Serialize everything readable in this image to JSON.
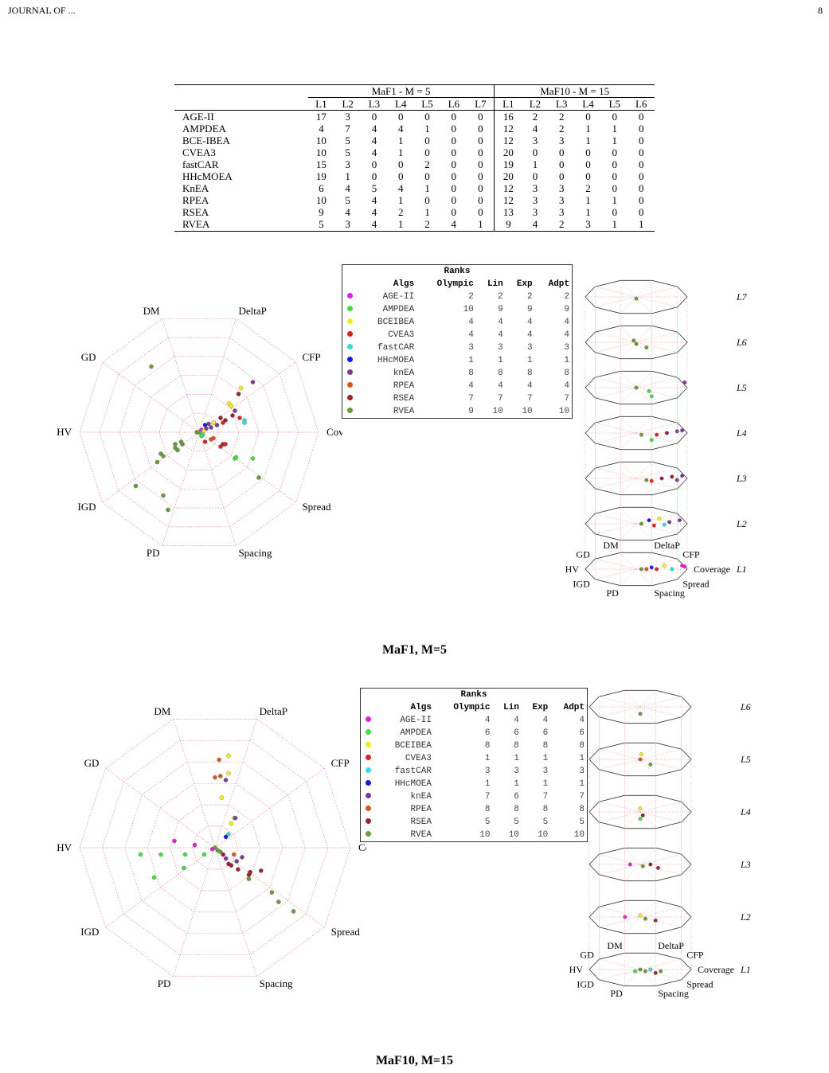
{
  "header": {
    "left": "JOURNAL OF ...",
    "right": "8"
  },
  "levels_table": {
    "group1_title": "MaF1 - M = 5",
    "group2_title": "MaF10 - M = 15",
    "group1_cols": [
      "L1",
      "L2",
      "L3",
      "L4",
      "L5",
      "L6",
      "L7"
    ],
    "group2_cols": [
      "L1",
      "L2",
      "L3",
      "L4",
      "L5",
      "L6"
    ],
    "rows": [
      {
        "name": "AGE-II",
        "g1": [
          "17",
          "3",
          "0",
          "0",
          "0",
          "0",
          "0"
        ],
        "g2": [
          "16",
          "2",
          "2",
          "0",
          "0",
          "0"
        ]
      },
      {
        "name": "AMPDEA",
        "g1": [
          "4",
          "7",
          "4",
          "4",
          "1",
          "0",
          "0"
        ],
        "g2": [
          "12",
          "4",
          "2",
          "1",
          "1",
          "0"
        ]
      },
      {
        "name": "BCE-IBEA",
        "g1": [
          "10",
          "5",
          "4",
          "1",
          "0",
          "0",
          "0"
        ],
        "g2": [
          "12",
          "3",
          "3",
          "1",
          "1",
          "0"
        ]
      },
      {
        "name": "CVEA3",
        "g1": [
          "10",
          "5",
          "4",
          "1",
          "0",
          "0",
          "0"
        ],
        "g2": [
          "20",
          "0",
          "0",
          "0",
          "0",
          "0"
        ]
      },
      {
        "name": "fastCAR",
        "g1": [
          "15",
          "3",
          "0",
          "0",
          "2",
          "0",
          "0"
        ],
        "g2": [
          "19",
          "1",
          "0",
          "0",
          "0",
          "0"
        ]
      },
      {
        "name": "HHcMOEA",
        "g1": [
          "19",
          "1",
          "0",
          "0",
          "0",
          "0",
          "0"
        ],
        "g2": [
          "20",
          "0",
          "0",
          "0",
          "0",
          "0"
        ]
      },
      {
        "name": "KnEA",
        "g1": [
          "6",
          "4",
          "5",
          "4",
          "1",
          "0",
          "0"
        ],
        "g2": [
          "12",
          "3",
          "3",
          "2",
          "0",
          "0"
        ]
      },
      {
        "name": "RPEA",
        "g1": [
          "10",
          "5",
          "4",
          "1",
          "0",
          "0",
          "0"
        ],
        "g2": [
          "12",
          "3",
          "3",
          "1",
          "1",
          "0"
        ]
      },
      {
        "name": "RSEA",
        "g1": [
          "9",
          "4",
          "4",
          "2",
          "1",
          "0",
          "0"
        ],
        "g2": [
          "13",
          "3",
          "3",
          "1",
          "0",
          "0"
        ]
      },
      {
        "name": "RVEA",
        "g1": [
          "5",
          "3",
          "4",
          "1",
          "2",
          "4",
          "1"
        ],
        "g2": [
          "9",
          "4",
          "2",
          "3",
          "1",
          "1"
        ]
      }
    ]
  },
  "rank_headers": {
    "title": "Ranks",
    "algs": "Algs",
    "olympic": "Olympic",
    "lin": "Lin",
    "exp": "Exp",
    "adpt": "Adpt"
  },
  "palette": {
    "AGE-II": "#e020e0",
    "AMPDEA": "#44dd44",
    "BCEIBEA": "#eeee22",
    "CVEA3": "#dd2222",
    "fastCAR": "#33dddd",
    "HHcMOEA": "#1a1add",
    "knEA": "#7a3a9a",
    "RPEA": "#d45a22",
    "RSEA": "#992233",
    "RVEA": "#6a9a3a"
  },
  "figure1": {
    "caption": "MaF1, M=5",
    "axes": [
      "DM",
      "DeltaP",
      "CFP",
      "Coverage",
      "Spread",
      "Spacing",
      "PD",
      "IGD",
      "HV",
      "GD"
    ],
    "ranks": [
      {
        "alg": "AGE-II",
        "olympic": "2",
        "lin": "2",
        "exp": "2",
        "adpt": "2"
      },
      {
        "alg": "AMPDEA",
        "olympic": "10",
        "lin": "9",
        "exp": "9",
        "adpt": "9"
      },
      {
        "alg": "BCEIBEA",
        "olympic": "4",
        "lin": "4",
        "exp": "4",
        "adpt": "4"
      },
      {
        "alg": "CVEA3",
        "olympic": "4",
        "lin": "4",
        "exp": "4",
        "adpt": "4"
      },
      {
        "alg": "fastCAR",
        "olympic": "3",
        "lin": "3",
        "exp": "3",
        "adpt": "3"
      },
      {
        "alg": "HHcMOEA",
        "olympic": "1",
        "lin": "1",
        "exp": "1",
        "adpt": "1"
      },
      {
        "alg": "knEA",
        "olympic": "8",
        "lin": "8",
        "exp": "8",
        "adpt": "8"
      },
      {
        "alg": "RPEA",
        "olympic": "4",
        "lin": "4",
        "exp": "4",
        "adpt": "4"
      },
      {
        "alg": "RSEA",
        "olympic": "7",
        "lin": "7",
        "exp": "7",
        "adpt": "7"
      },
      {
        "alg": "RVEA",
        "olympic": "9",
        "lin": "10",
        "exp": "10",
        "adpt": "10"
      }
    ],
    "level_labels": [
      "L7",
      "L6",
      "L5",
      "L4",
      "L3",
      "L2",
      "L1"
    ]
  },
  "figure2": {
    "caption": "MaF10, M=15",
    "axes": [
      "DM",
      "DeltaP",
      "CFP",
      "Coverage",
      "Spread",
      "Spacing",
      "PD",
      "IGD",
      "HV",
      "GD"
    ],
    "ranks": [
      {
        "alg": "AGE-II",
        "olympic": "4",
        "lin": "4",
        "exp": "4",
        "adpt": "4"
      },
      {
        "alg": "AMPDEA",
        "olympic": "6",
        "lin": "6",
        "exp": "6",
        "adpt": "6"
      },
      {
        "alg": "BCEIBEA",
        "olympic": "8",
        "lin": "8",
        "exp": "8",
        "adpt": "8"
      },
      {
        "alg": "CVEA3",
        "olympic": "1",
        "lin": "1",
        "exp": "1",
        "adpt": "1"
      },
      {
        "alg": "fastCAR",
        "olympic": "3",
        "lin": "3",
        "exp": "3",
        "adpt": "3"
      },
      {
        "alg": "HHcMOEA",
        "olympic": "1",
        "lin": "1",
        "exp": "1",
        "adpt": "1"
      },
      {
        "alg": "knEA",
        "olympic": "7",
        "lin": "6",
        "exp": "7",
        "adpt": "7"
      },
      {
        "alg": "RPEA",
        "olympic": "8",
        "lin": "8",
        "exp": "8",
        "adpt": "8"
      },
      {
        "alg": "RSEA",
        "olympic": "5",
        "lin": "5",
        "exp": "5",
        "adpt": "5"
      },
      {
        "alg": "RVEA",
        "olympic": "10",
        "lin": "10",
        "exp": "10",
        "adpt": "10"
      }
    ],
    "level_labels": [
      "L6",
      "L5",
      "L4",
      "L3",
      "L2",
      "L1"
    ]
  }
}
